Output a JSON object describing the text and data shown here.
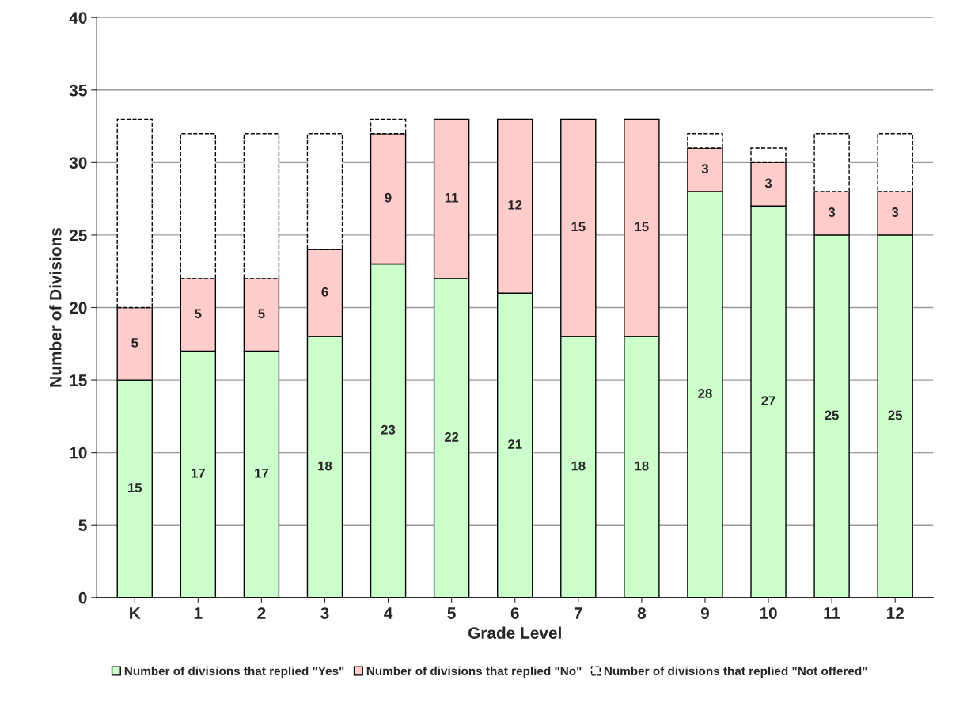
{
  "chart_data": {
    "type": "bar",
    "stacked": true,
    "xlabel": "Grade Level",
    "ylabel": "Number of Divisions",
    "categories": [
      "K",
      "1",
      "2",
      "3",
      "4",
      "5",
      "6",
      "7",
      "8",
      "9",
      "10",
      "11",
      "12"
    ],
    "series": [
      {
        "name": "Number of divisions that replied \"Yes\"",
        "color": "#ccffcc",
        "values": [
          15,
          17,
          17,
          18,
          23,
          22,
          21,
          18,
          18,
          28,
          27,
          25,
          25
        ],
        "value_labels": [
          "15",
          "17",
          "17",
          "18",
          "23",
          "22",
          "21",
          "18",
          "18",
          "28",
          "27",
          "25",
          "25"
        ]
      },
      {
        "name": "Number of divisions that replied \"No\"",
        "color": "#ffcccc",
        "values": [
          5,
          5,
          5,
          6,
          9,
          11,
          12,
          15,
          15,
          3,
          3,
          3,
          3
        ],
        "value_labels": [
          "5",
          "5",
          "5",
          "6",
          "9",
          "11",
          "12",
          "15",
          "15",
          "3",
          "3",
          "3",
          "3"
        ]
      },
      {
        "name": "Number of divisions that replied \"Not offered\"",
        "color": "#ffffff",
        "line_style": "dashed",
        "values": [
          13,
          10,
          10,
          8,
          1,
          0,
          0,
          0,
          0,
          1,
          1,
          4,
          4
        ]
      }
    ],
    "ylim": [
      0,
      40
    ],
    "yticks": [
      0,
      5,
      10,
      15,
      20,
      25,
      30,
      35,
      40
    ],
    "grid": "y",
    "legend": "bottom"
  }
}
